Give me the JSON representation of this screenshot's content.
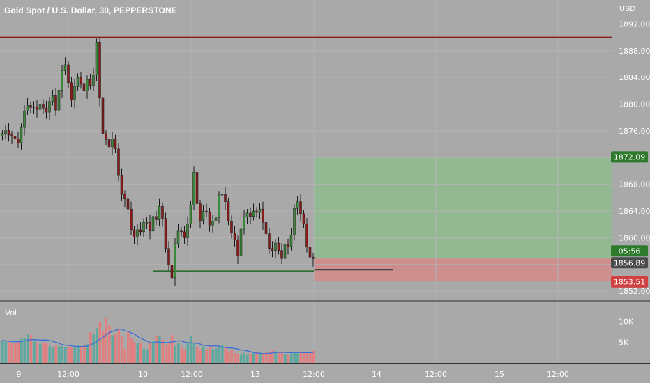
{
  "header": {
    "title": "Gold Spot / U.S. Dollar, 30, PEPPERSTONE",
    "unit": "USD",
    "volume_pane_label": "Vol"
  },
  "colors": {
    "background": "#a9a9a9",
    "bull": "#3a8a3a",
    "bear": "#8b1a1a",
    "resistance": "#8b1a1a",
    "support": "#2e6b2e",
    "profit_zone": "#8cbf8c",
    "loss_zone": "#d48a8a",
    "volume_up": "#5fa8a0",
    "volume_down": "#e08080",
    "volume_ma": "#3a6fd8"
  },
  "price_axis": {
    "ticks": [
      "1892.00",
      "1888.00",
      "1884.00",
      "1880.00",
      "1876.00",
      "1868.00",
      "1864.00",
      "1860.00",
      "1852.00"
    ],
    "range": [
      1851.5,
      1893.5
    ]
  },
  "volume_axis": {
    "ticks": [
      "10K",
      "5K"
    ],
    "range": [
      0,
      14000
    ]
  },
  "time_axis": {
    "ticks": [
      "9",
      "12:00",
      "10",
      "12:00",
      "13",
      "12:00",
      "14",
      "12:00",
      "15",
      "12:00"
    ]
  },
  "badges": {
    "target": "1872.09",
    "countdown": "05:56",
    "last_price": "1856.89",
    "stop": "1853.51"
  },
  "chart_data": {
    "type": "candlestick",
    "title": "Gold Spot / U.S. Dollar, 30, PEPPERSTONE",
    "ylabel": "USD",
    "ylim": [
      1851.5,
      1893.5
    ],
    "x_ticks": [
      "9",
      "12:00",
      "10",
      "12:00",
      "13",
      "12:00",
      "14",
      "12:00",
      "15",
      "12:00"
    ],
    "levels": {
      "resistance": 1890.0,
      "support": 1855.0
    },
    "position": {
      "entry": 1856.89,
      "target": 1872.09,
      "stop": 1853.51
    },
    "close": [
      1875.6,
      1876.1,
      1875.4,
      1875.2,
      1874.8,
      1874.2,
      1876.5,
      1879.0,
      1879.8,
      1879.5,
      1879.6,
      1879.2,
      1879.9,
      1879.4,
      1878.8,
      1880.4,
      1881.3,
      1879.1,
      1882.1,
      1885.0,
      1885.9,
      1883.2,
      1880.6,
      1882.6,
      1884.0,
      1883.1,
      1882.0,
      1883.7,
      1882.8,
      1884.4,
      1889.2,
      1880.9,
      1875.6,
      1874.7,
      1873.6,
      1874.8,
      1873.3,
      1869.3,
      1866.5,
      1865.8,
      1864.3,
      1861.2,
      1860.1,
      1861.2,
      1860.9,
      1862.3,
      1862.3,
      1861.0,
      1863.2,
      1862.7,
      1864.7,
      1862.9,
      1858.4,
      1855.9,
      1854.0,
      1859.1,
      1861.0,
      1860.9,
      1860.0,
      1862.1,
      1864.9,
      1869.8,
      1865.1,
      1862.6,
      1864.0,
      1863.9,
      1861.9,
      1862.5,
      1863.0,
      1866.4,
      1866.5,
      1865.4,
      1862.5,
      1860.7,
      1859.7,
      1857.3,
      1861.3,
      1863.1,
      1863.7,
      1863.2,
      1864.0,
      1863.8,
      1864.3,
      1862.3,
      1860.6,
      1858.4,
      1858.1,
      1859.2,
      1858.1,
      1856.9,
      1859.0,
      1858.7,
      1860.4,
      1864.4,
      1865.4,
      1863.6,
      1862.1,
      1858.6,
      1857.1,
      1856.9
    ],
    "volume": [
      5500,
      5100,
      5100,
      4800,
      4900,
      5300,
      5800,
      6000,
      7000,
      6700,
      5400,
      4700,
      4600,
      5000,
      4700,
      4000,
      3800,
      4100,
      4000,
      4000,
      3900,
      3900,
      3800,
      3800,
      4200,
      4000,
      4400,
      4500,
      7400,
      7000,
      8400,
      10000,
      7600,
      10900,
      9000,
      6700,
      6900,
      8000,
      6600,
      3300,
      7400,
      6000,
      5000,
      4800,
      4800,
      3400,
      3100,
      4800,
      5300,
      6400,
      6400,
      5600,
      4400,
      5000,
      6700,
      4100,
      4900,
      3600,
      3000,
      4900,
      6600,
      4600,
      3900,
      3100,
      4000,
      3300,
      4000,
      3300,
      3500,
      3800,
      4400,
      3800,
      2800,
      3200,
      2400,
      2100,
      1900,
      2400,
      1900,
      2100,
      2600,
      2400,
      2100,
      2300,
      2600,
      2700,
      3100,
      2800,
      2600,
      2400,
      2100,
      1900,
      2300,
      2600,
      2500,
      2700,
      2800,
      2600,
      2700,
      2900
    ]
  }
}
